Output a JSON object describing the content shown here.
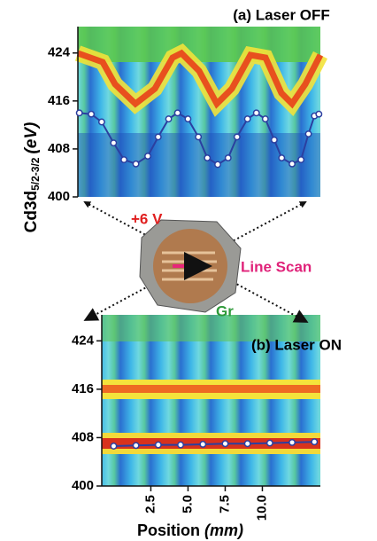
{
  "figure": {
    "y_label": {
      "main": "Cd3d",
      "sub": "5/2-3/2",
      "unit": "(eV)"
    },
    "x_label": {
      "main": "Position",
      "unit": "(mm)"
    },
    "inset": {
      "voltage": "+6 V",
      "scan": "Line Scan",
      "electrode": "Gr"
    }
  },
  "chart_data": [
    {
      "type": "line",
      "title": "(a) Laser OFF",
      "color": "#2b3fa0",
      "xlim": [
        -2.4,
        13.9
      ],
      "ylim": [
        400,
        428.4
      ],
      "yticks": [
        400,
        408,
        416,
        424
      ],
      "x": [
        -2.3,
        -1.5,
        -0.8,
        0,
        0.7,
        1.5,
        2.3,
        3,
        3.7,
        4.3,
        5,
        5.7,
        6.3,
        7,
        7.7,
        8.3,
        9,
        9.6,
        10.2,
        10.8,
        11.3,
        12,
        12.6,
        13.1,
        13.5,
        13.8
      ],
      "values": [
        414,
        413.8,
        412.5,
        409,
        406.2,
        405.5,
        406.8,
        410,
        413,
        414,
        413,
        410,
        406.5,
        405.4,
        406.5,
        410,
        413,
        414,
        413,
        409.5,
        406.5,
        405.5,
        406.2,
        410.5,
        413.5,
        413.8
      ]
    },
    {
      "type": "line",
      "title": "(b) Laser ON",
      "color": "#2b3fa0",
      "xlim": [
        -0.8,
        13.9
      ],
      "ylim": [
        400,
        428.3
      ],
      "yticks": [
        400,
        408,
        416,
        424
      ],
      "xticks": [
        2.5,
        {
          "value": 5,
          "label": "5.0"
        },
        7.5,
        {
          "value": 10,
          "label": "10.0"
        }
      ],
      "x": [
        0,
        1.5,
        3,
        4.5,
        6,
        7.5,
        9,
        10.5,
        12,
        13.5
      ],
      "values": [
        406.6,
        406.7,
        406.8,
        406.8,
        406.9,
        407,
        407,
        407.1,
        407.2,
        407.3
      ]
    }
  ]
}
